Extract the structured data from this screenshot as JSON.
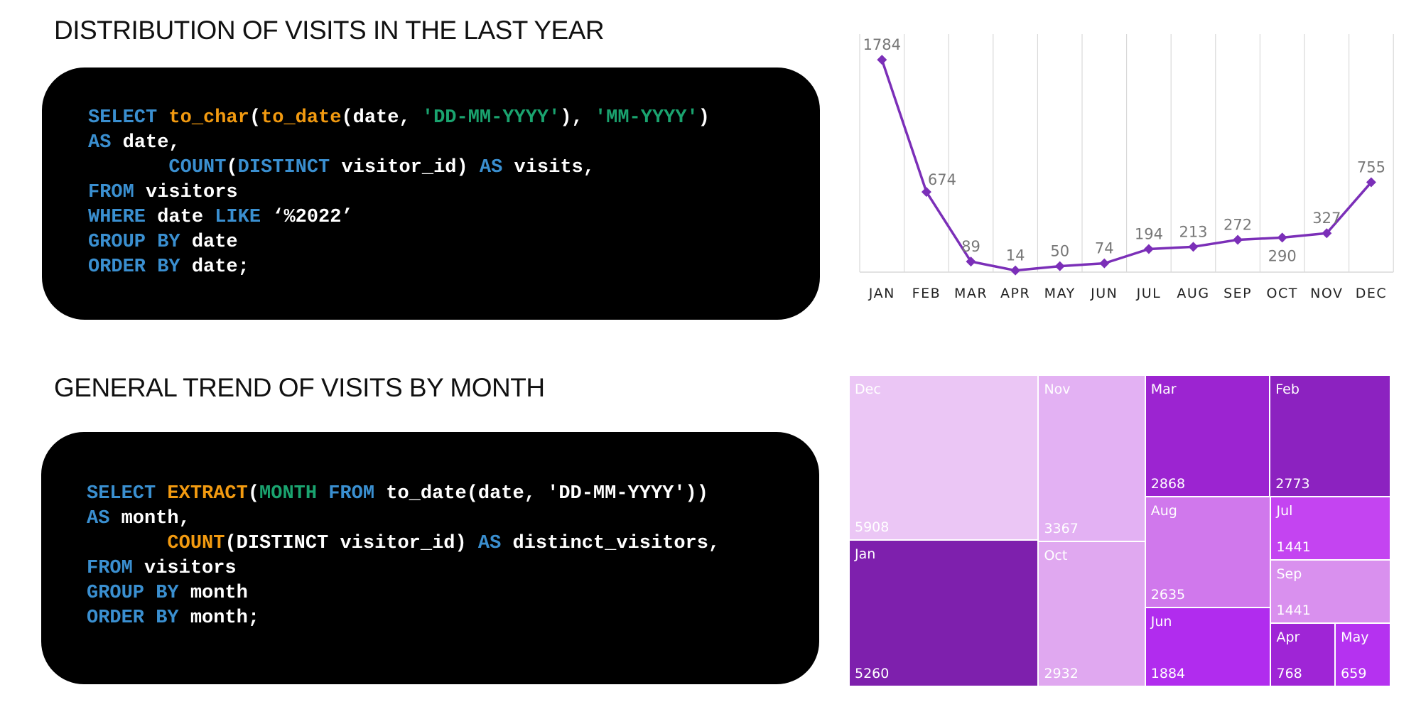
{
  "titles": {
    "distribution": "DISTRIBUTION OF VISITS IN THE LAST YEAR",
    "trend": "GENERAL TREND OF VISITS BY MONTH"
  },
  "code_blocks": [
    {
      "lines": [
        [
          {
            "t": "SELECT ",
            "c": "kw"
          },
          {
            "t": "to_char",
            "c": "fn"
          },
          {
            "t": "(",
            "c": "plain"
          },
          {
            "t": "to_date",
            "c": "fn"
          },
          {
            "t": "(date, ",
            "c": "plain"
          },
          {
            "t": "'DD-MM-YYYY'",
            "c": "str"
          },
          {
            "t": "), ",
            "c": "plain"
          },
          {
            "t": "'MM-YYYY'",
            "c": "str"
          },
          {
            "t": ")",
            "c": "plain"
          }
        ],
        [
          {
            "t": "AS ",
            "c": "kw"
          },
          {
            "t": "date,",
            "c": "plain"
          }
        ],
        [
          {
            "t": "       ",
            "c": "plain"
          },
          {
            "t": "COUNT",
            "c": "kw"
          },
          {
            "t": "(",
            "c": "plain"
          },
          {
            "t": "DISTINCT",
            "c": "kw"
          },
          {
            "t": " visitor_id) ",
            "c": "plain"
          },
          {
            "t": "AS",
            "c": "kw"
          },
          {
            "t": " visits,",
            "c": "plain"
          }
        ],
        [
          {
            "t": "FROM ",
            "c": "kw"
          },
          {
            "t": "visitors",
            "c": "plain"
          }
        ],
        [
          {
            "t": "WHERE ",
            "c": "kw"
          },
          {
            "t": "date ",
            "c": "plain"
          },
          {
            "t": "LIKE ",
            "c": "kw"
          },
          {
            "t": "‘%2022’",
            "c": "plain"
          }
        ],
        [
          {
            "t": "GROUP BY ",
            "c": "kw"
          },
          {
            "t": "date",
            "c": "plain"
          }
        ],
        [
          {
            "t": "ORDER BY ",
            "c": "kw"
          },
          {
            "t": "date;",
            "c": "plain"
          }
        ]
      ]
    },
    {
      "lines": [
        [
          {
            "t": "SELECT ",
            "c": "kw"
          },
          {
            "t": "EXTRACT",
            "c": "fn"
          },
          {
            "t": "(",
            "c": "plain"
          },
          {
            "t": "MONTH",
            "c": "str"
          },
          {
            "t": " FROM ",
            "c": "kw"
          },
          {
            "t": "to_date(date, 'DD-MM-YYYY'))",
            "c": "plain"
          }
        ],
        [
          {
            "t": "AS ",
            "c": "kw"
          },
          {
            "t": "month,",
            "c": "plain"
          }
        ],
        [
          {
            "t": "       ",
            "c": "plain"
          },
          {
            "t": "COUNT",
            "c": "fn"
          },
          {
            "t": "(DISTINCT visitor_id) ",
            "c": "plain"
          },
          {
            "t": "AS",
            "c": "kw"
          },
          {
            "t": " distinct_visitors,",
            "c": "plain"
          }
        ],
        [
          {
            "t": "FROM ",
            "c": "kw"
          },
          {
            "t": "visitors",
            "c": "plain"
          }
        ],
        [
          {
            "t": "GROUP BY ",
            "c": "kw"
          },
          {
            "t": "month",
            "c": "plain"
          }
        ],
        [
          {
            "t": "ORDER BY ",
            "c": "kw"
          },
          {
            "t": "month;",
            "c": "plain"
          }
        ]
      ]
    }
  ],
  "chart_data": [
    {
      "type": "line",
      "categories": [
        "JAN",
        "FEB",
        "MAR",
        "APR",
        "MAY",
        "JUN",
        "JUL",
        "AUG",
        "SEP",
        "OCT",
        "NOV",
        "DEC"
      ],
      "values": [
        1784,
        674,
        89,
        14,
        50,
        74,
        194,
        213,
        272,
        290,
        327,
        755
      ],
      "data_labels": [
        "1784",
        "674",
        "89",
        "14",
        "50",
        "74",
        "194",
        "213",
        "272",
        "290",
        "327",
        "755"
      ],
      "ylim": [
        0,
        2000
      ],
      "grid": "vertical",
      "line_color": "#7b2fb8",
      "label_color": "#777777"
    },
    {
      "type": "treemap",
      "items": [
        {
          "name": "Dec",
          "value": 5908,
          "color": "#ebc6f5"
        },
        {
          "name": "Jan",
          "value": 5260,
          "color": "#7e20ad"
        },
        {
          "name": "Nov",
          "value": 3367,
          "color": "#e3b1f3"
        },
        {
          "name": "Oct",
          "value": 2932,
          "color": "#e0a8f0"
        },
        {
          "name": "Mar",
          "value": 2868,
          "color": "#9c24d1"
        },
        {
          "name": "Feb",
          "value": 2773,
          "color": "#8c22c0"
        },
        {
          "name": "Aug",
          "value": 2635,
          "color": "#d078ec"
        },
        {
          "name": "Jun",
          "value": 1884,
          "color": "#b12cee"
        },
        {
          "name": "Jul",
          "value": 1441,
          "color": "#c444f1"
        },
        {
          "name": "Sep",
          "value": 1441,
          "color": "#d990ee"
        },
        {
          "name": "Apr",
          "value": 768,
          "color": "#9f25d6"
        },
        {
          "name": "May",
          "value": 659,
          "color": "#b532f0"
        }
      ]
    }
  ]
}
